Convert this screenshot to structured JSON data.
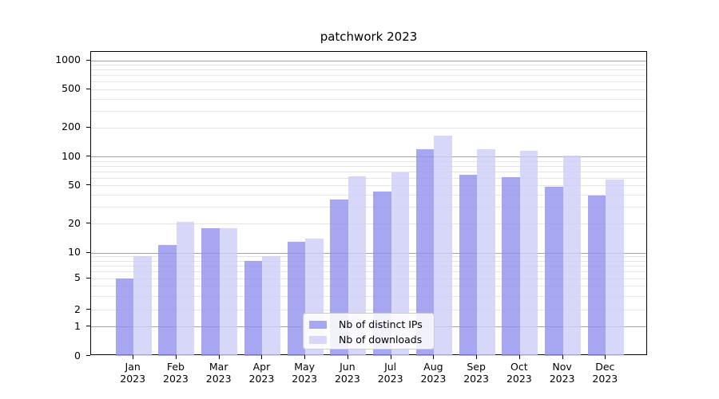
{
  "chart_data": {
    "type": "bar",
    "title": "patchwork 2023",
    "categories": [
      "Jan 2023",
      "Feb 2023",
      "Mar 2023",
      "Apr 2023",
      "May 2023",
      "Jun 2023",
      "Jul 2023",
      "Aug 2023",
      "Sep 2023",
      "Oct 2023",
      "Nov 2023",
      "Dec 2023"
    ],
    "series": [
      {
        "name": "Nb of distinct IPs",
        "color": "rgba(145,145,237,0.8)",
        "values": [
          5,
          12,
          18,
          8,
          13,
          36,
          43,
          120,
          64,
          61,
          48,
          39
        ]
      },
      {
        "name": "Nb of downloads",
        "color": "rgba(205,205,247,0.8)",
        "values": [
          9,
          21,
          18,
          9,
          14,
          62,
          68,
          165,
          120,
          115,
          103,
          58
        ]
      }
    ],
    "xlabel": "",
    "ylabel": "",
    "yscale": "symlog-like",
    "ylim": [
      0,
      1230
    ],
    "y_tick_values": [
      0,
      1,
      2,
      5,
      10,
      20,
      50,
      100,
      200,
      500,
      1000
    ],
    "y_major_gridlines": [
      1,
      10,
      100,
      1000
    ],
    "y_minor_gridlines": [
      2,
      3,
      4,
      5,
      6,
      7,
      8,
      9,
      20,
      30,
      40,
      50,
      60,
      70,
      80,
      90,
      200,
      300,
      400,
      500,
      600,
      700,
      800,
      900
    ],
    "grid": "on",
    "legend_position": "lower center",
    "colors": {
      "major_grid": "#a3a3a3",
      "minor_grid": "#e5e5e5",
      "axis": "#000000"
    }
  }
}
